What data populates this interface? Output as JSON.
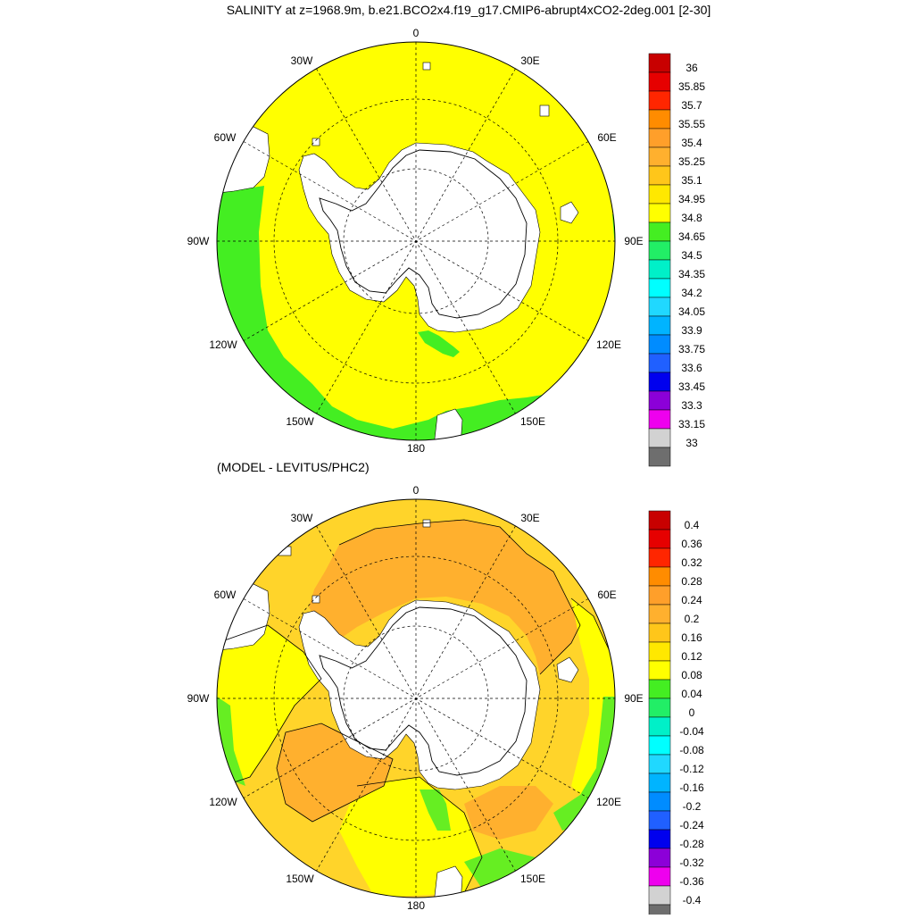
{
  "figure": {
    "title": "SALINITY at z=1968.9m, b.e21.BCO2x4.f19_g17.CMIP6-abrupt4xCO2-2deg.001 [2-30]",
    "subtitle": "(MODEL - LEVITUS/PHC2)"
  },
  "colors": {
    "land": "#ffffff",
    "coastline": "#000000",
    "grid": "#000000"
  },
  "maps": [
    {
      "name": "salinity-map",
      "projection": "south-polar-stereographic",
      "longitude_labels": [
        "0",
        "30E",
        "60E",
        "90E",
        "120E",
        "150E",
        "180",
        "150W",
        "120W",
        "90W",
        "60W",
        "30W"
      ],
      "background_color": "#ffff00",
      "regions": [
        {
          "name": "pacific-sector-band",
          "color": "#44ee22",
          "value": "34.65-34.8"
        },
        {
          "name": "ross-sea-patch",
          "color": "#44ee22",
          "value": "34.65-34.8"
        },
        {
          "name": "indian-sector-edge",
          "color": "#44ee22",
          "value": "34.65-34.8"
        }
      ],
      "colorbar": {
        "labels": [
          "36",
          "35.85",
          "35.7",
          "35.55",
          "35.4",
          "35.25",
          "35.1",
          "34.95",
          "34.8",
          "34.65",
          "34.5",
          "34.35",
          "34.2",
          "34.05",
          "33.9",
          "33.75",
          "33.6",
          "33.45",
          "33.3",
          "33.15",
          "33"
        ],
        "colors": [
          "#c80000",
          "#e60000",
          "#ff2600",
          "#ff8c00",
          "#ff9f2a",
          "#ffb02e",
          "#ffc61a",
          "#ffe800",
          "#ffff00",
          "#44ee22",
          "#22ee66",
          "#00f0c8",
          "#00ffff",
          "#20d8ff",
          "#00b4ff",
          "#008cff",
          "#2060ff",
          "#0000ee",
          "#8c00d8",
          "#ee00ee",
          "#d2d2d2",
          "#6e6e6e"
        ]
      }
    },
    {
      "name": "difference-map",
      "projection": "south-polar-stereographic",
      "longitude_labels": [
        "0",
        "30E",
        "60E",
        "90E",
        "120E",
        "150E",
        "180",
        "150W",
        "120W",
        "90W",
        "60W",
        "30W"
      ],
      "background_color": "#ffd42a",
      "regions": [
        {
          "name": "atlantic-warm-ring",
          "color": "#ffb02e",
          "value": "0.2-0.24"
        },
        {
          "name": "indian-sector-yellow",
          "color": "#ffff00",
          "value": "0.08-0.12"
        },
        {
          "name": "pacific-yellow",
          "color": "#ffff00",
          "value": "0.08-0.12"
        },
        {
          "name": "pacific-orange",
          "color": "#ffb02e",
          "value": "0.2-0.24"
        },
        {
          "name": "green-edges",
          "color": "#66ee22",
          "value": "0.04-0.08"
        }
      ],
      "colorbar": {
        "labels": [
          "0.4",
          "0.36",
          "0.32",
          "0.28",
          "0.24",
          "0.2",
          "0.16",
          "0.12",
          "0.08",
          "0.04",
          "0",
          "-0.04",
          "-0.08",
          "-0.12",
          "-0.16",
          "-0.2",
          "-0.24",
          "-0.28",
          "-0.32",
          "-0.36",
          "-0.4"
        ],
        "colors": [
          "#c80000",
          "#e60000",
          "#ff2600",
          "#ff8c00",
          "#ff9f2a",
          "#ffb02e",
          "#ffc61a",
          "#ffe800",
          "#ffff00",
          "#44ee22",
          "#22ee66",
          "#00f0c8",
          "#00ffff",
          "#20d8ff",
          "#00b4ff",
          "#008cff",
          "#2060ff",
          "#0000ee",
          "#8c00d8",
          "#ee00ee",
          "#d2d2d2",
          "#6e6e6e"
        ]
      }
    }
  ]
}
